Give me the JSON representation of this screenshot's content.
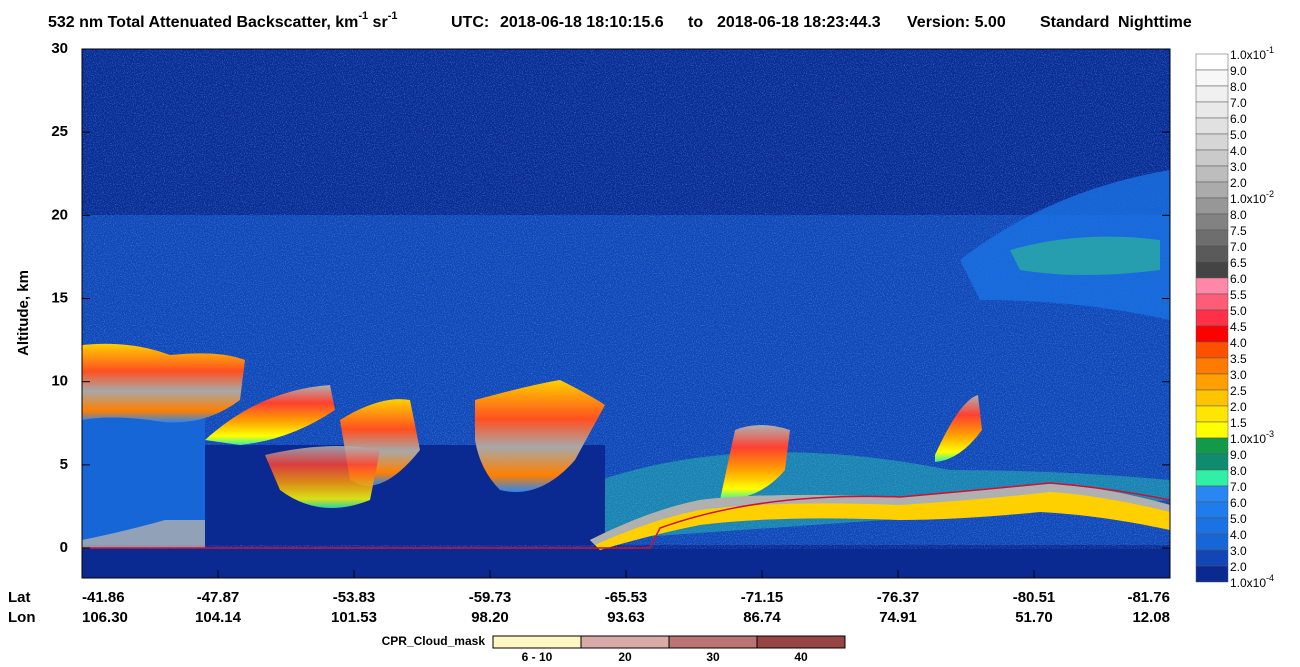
{
  "chart_data": {
    "type": "curtain",
    "title": {
      "main": "532 nm Total Attenuated Backscatter, km",
      "unit1_exp": "-1",
      "unit2": " sr",
      "unit2_exp": "-1",
      "utc_label": "UTC:",
      "start": "2018-06-18 18:10:15.6",
      "to": "to",
      "end": "2018-06-18 18:23:44.3",
      "version": "Version: 5.00",
      "mode": "Standard",
      "light": "Nighttime"
    },
    "y_label": "Altitude, km",
    "ylim": [
      -1.8,
      30
    ],
    "yticks": [
      0,
      5,
      10,
      15,
      20,
      25,
      30
    ],
    "x_rows": {
      "lat_label": "Lat",
      "lon_label": "Lon",
      "lat": [
        "-41.86",
        "-47.87",
        "-53.83",
        "-59.73",
        "-65.53",
        "-71.15",
        "-76.37",
        "-80.51",
        "-81.76"
      ],
      "lon": [
        "106.30",
        "104.14",
        "101.53",
        "98.20",
        "93.63",
        "86.74",
        "74.91",
        "51.70",
        "12.08"
      ]
    },
    "colorbar": {
      "labels": [
        {
          "text": "1.0x10",
          "sup": "-1"
        },
        "9.0",
        "8.0",
        "7.0",
        "6.0",
        "5.0",
        "4.0",
        "3.0",
        "2.0",
        {
          "text": "1.0x10",
          "sup": "-2"
        },
        "8.0",
        "7.5",
        "7.0",
        "6.5",
        "6.0",
        "5.5",
        "5.0",
        "4.5",
        "4.0",
        "3.5",
        "3.0",
        "2.5",
        "2.0",
        "1.5",
        {
          "text": "1.0x10",
          "sup": "-3"
        },
        "9.0",
        "8.0",
        "7.0",
        "6.0",
        "5.0",
        "4.0",
        "3.0",
        "2.0",
        {
          "text": "1.0x10",
          "sup": "-4"
        }
      ],
      "colors": [
        "#ffffff",
        "#f7f7f7",
        "#f0f0f0",
        "#e9e9e9",
        "#e1e1e1",
        "#d6d6d6",
        "#cacaca",
        "#bdbdbd",
        "#ababab",
        "#979797",
        "#828282",
        "#6e6e6e",
        "#5a5a5a",
        "#444444",
        "#ff88a8",
        "#ff5c78",
        "#ff3048",
        "#ff0000",
        "#ff5000",
        "#ff7a00",
        "#ffa000",
        "#ffc400",
        "#ffe600",
        "#ffff00",
        "#129a4a",
        "#0f8c70",
        "#30f0a8",
        "#2a86f2",
        "#1f7cec",
        "#1a72e4",
        "#1666d8",
        "#1246b6",
        "#0a2a92"
      ]
    },
    "cpr_legend": {
      "title": "CPR_Cloud_mask",
      "labels": [
        "6 - 10",
        "20",
        "30",
        "40"
      ],
      "colors": [
        "#fff8c4",
        "#d9aaa8",
        "#b97474",
        "#974444"
      ]
    }
  }
}
